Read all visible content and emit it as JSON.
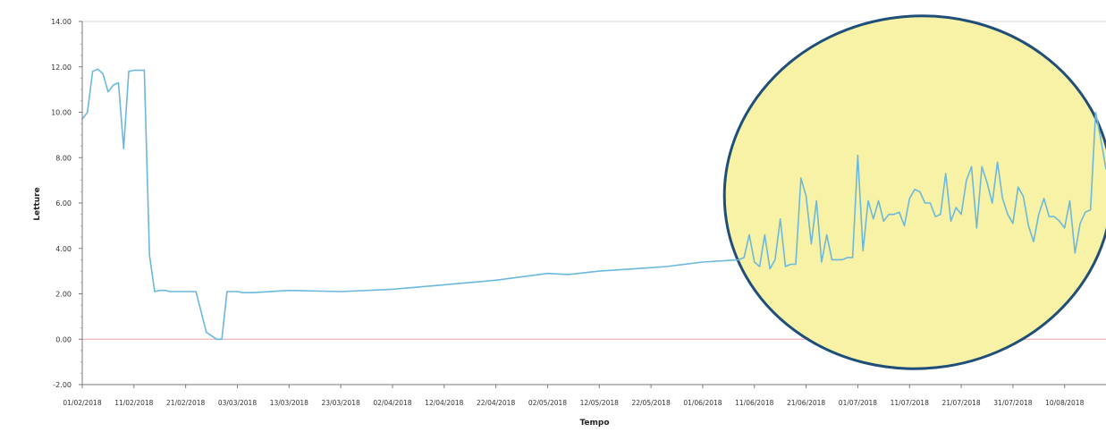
{
  "chart_data": {
    "type": "line",
    "title": "",
    "xlabel": "Tempo",
    "ylabel": "Letture",
    "ylim": [
      -2,
      14
    ],
    "xlim": [
      "2018-02-01",
      "2018-08-18"
    ],
    "y_ticks": [
      "-2.00",
      "0.00",
      "2.00",
      "4.00",
      "6.00",
      "8.00",
      "10.00",
      "12.00",
      "14.00"
    ],
    "x_ticks": [
      "01/02/2018",
      "11/02/2018",
      "21/02/2018",
      "03/03/2018",
      "13/03/2018",
      "23/03/2018",
      "02/04/2018",
      "12/04/2018",
      "22/04/2018",
      "02/05/2018",
      "12/05/2018",
      "22/05/2018",
      "01/06/2018",
      "11/06/2018",
      "21/06/2018",
      "01/07/2018",
      "11/07/2018",
      "21/07/2018",
      "31/07/2018",
      "10/08/2018"
    ],
    "grid": false,
    "legend": "none",
    "reference_line": {
      "y": 0,
      "color": "#f4a6a6"
    },
    "series": [
      {
        "color": "#6cb8dd",
        "x": [
          "2018-02-01",
          "2018-02-02",
          "2018-02-03",
          "2018-02-04",
          "2018-02-05",
          "2018-02-06",
          "2018-02-07",
          "2018-02-08",
          "2018-02-09",
          "2018-02-10",
          "2018-02-11",
          "2018-02-12",
          "2018-02-13",
          "2018-02-14",
          "2018-02-15",
          "2018-02-16",
          "2018-02-17",
          "2018-02-18",
          "2018-02-20",
          "2018-02-23",
          "2018-02-25",
          "2018-02-27",
          "2018-02-28",
          "2018-03-01",
          "2018-03-02",
          "2018-03-03",
          "2018-03-04",
          "2018-03-06",
          "2018-03-13",
          "2018-03-23",
          "2018-04-02",
          "2018-04-12",
          "2018-04-22",
          "2018-05-02",
          "2018-05-06",
          "2018-05-12",
          "2018-05-22",
          "2018-05-25",
          "2018-06-01",
          "2018-06-08",
          "2018-06-09",
          "2018-06-10",
          "2018-06-11",
          "2018-06-12",
          "2018-06-13",
          "2018-06-14",
          "2018-06-15",
          "2018-06-16",
          "2018-06-17",
          "2018-06-18",
          "2018-06-19",
          "2018-06-20",
          "2018-06-21",
          "2018-06-22",
          "2018-06-23",
          "2018-06-24",
          "2018-06-25",
          "2018-06-26",
          "2018-06-27",
          "2018-06-28",
          "2018-06-29",
          "2018-06-30",
          "2018-07-01",
          "2018-07-02",
          "2018-07-03",
          "2018-07-04",
          "2018-07-05",
          "2018-07-06",
          "2018-07-07",
          "2018-07-08",
          "2018-07-09",
          "2018-07-10",
          "2018-07-11",
          "2018-07-12",
          "2018-07-13",
          "2018-07-14",
          "2018-07-15",
          "2018-07-16",
          "2018-07-17",
          "2018-07-18",
          "2018-07-19",
          "2018-07-20",
          "2018-07-21",
          "2018-07-22",
          "2018-07-23",
          "2018-07-24",
          "2018-07-25",
          "2018-07-26",
          "2018-07-27",
          "2018-07-28",
          "2018-07-29",
          "2018-07-30",
          "2018-07-31",
          "2018-08-01",
          "2018-08-02",
          "2018-08-03",
          "2018-08-04",
          "2018-08-05",
          "2018-08-06",
          "2018-08-07",
          "2018-08-08",
          "2018-08-09",
          "2018-08-10",
          "2018-08-11",
          "2018-08-12",
          "2018-08-13",
          "2018-08-14",
          "2018-08-15",
          "2018-08-16",
          "2018-08-17",
          "2018-08-18"
        ],
        "y": [
          9.7,
          10.0,
          11.8,
          11.9,
          11.7,
          10.9,
          11.2,
          11.3,
          8.4,
          11.8,
          11.85,
          11.85,
          11.85,
          3.7,
          2.1,
          2.15,
          2.15,
          2.1,
          2.1,
          2.1,
          0.3,
          0.0,
          0.0,
          2.1,
          2.1,
          2.1,
          2.05,
          2.05,
          2.15,
          2.1,
          2.2,
          2.4,
          2.6,
          2.9,
          2.85,
          3.0,
          3.15,
          3.2,
          3.4,
          3.5,
          3.6,
          4.6,
          3.4,
          3.2,
          4.6,
          3.1,
          3.5,
          5.3,
          3.2,
          3.3,
          3.3,
          7.1,
          6.3,
          4.2,
          6.1,
          3.4,
          4.6,
          3.5,
          3.5,
          3.5,
          3.6,
          3.6,
          8.1,
          3.9,
          6.1,
          5.3,
          6.1,
          5.2,
          5.5,
          5.5,
          5.6,
          5.0,
          6.2,
          6.6,
          6.5,
          6.0,
          6.0,
          5.4,
          5.5,
          7.3,
          5.2,
          5.8,
          5.5,
          7.0,
          7.6,
          4.9,
          7.6,
          6.9,
          6.0,
          7.8,
          6.2,
          5.5,
          5.1,
          6.7,
          6.3,
          5.0,
          4.3,
          5.5,
          6.2,
          5.4,
          5.4,
          5.2,
          4.9,
          6.1,
          3.8,
          5.1,
          5.6,
          5.7,
          10.0,
          8.8,
          7.5
        ]
      }
    ],
    "annotations": [
      {
        "type": "ellipse",
        "fill": "#f7f2a6",
        "stroke": "#1f4e79"
      }
    ]
  }
}
